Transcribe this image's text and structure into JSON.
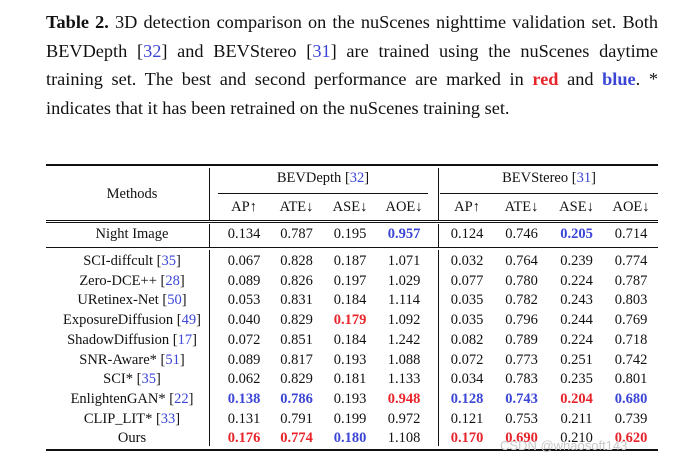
{
  "caption": {
    "label": "Table 2.",
    "text_1": " 3D detection comparison on the nuScenes nighttime validation set.  Both BEVDepth [",
    "ref_a": "32",
    "text_2": "] and BEVStereo [",
    "ref_b": "31",
    "text_3": "] are trained using the nuScenes daytime training set.  The best and second performance are marked in ",
    "red_word": "red",
    "text_4": " and ",
    "blue_word": "blue",
    "text_5": ".  * indicates that it has been retrained on the nuScenes training set."
  },
  "table": {
    "methods_header": "Methods",
    "group_a": {
      "name": "BEVDepth",
      "ref": "32"
    },
    "group_b": {
      "name": "BEVStereo",
      "ref": "31"
    },
    "columns": [
      "AP↑",
      "ATE↓",
      "ASE↓",
      "AOE↓",
      "AP↑",
      "ATE↓",
      "ASE↓",
      "AOE↓"
    ],
    "baseline": {
      "method": "Night Image",
      "values": [
        "0.134",
        "0.787",
        "0.195",
        "0.957",
        "0.124",
        "0.746",
        "0.205",
        "0.714"
      ],
      "styles": [
        "",
        "",
        "",
        "blue",
        "",
        "",
        "blue",
        ""
      ]
    },
    "rows": [
      {
        "method": "SCI-diffcult",
        "ref": "35",
        "values": [
          "0.067",
          "0.828",
          "0.187",
          "1.071",
          "0.032",
          "0.764",
          "0.239",
          "0.774"
        ],
        "styles": [
          "",
          "",
          "",
          "",
          "",
          "",
          "",
          ""
        ]
      },
      {
        "method": "Zero-DCE++",
        "ref": "28",
        "values": [
          "0.089",
          "0.826",
          "0.197",
          "1.029",
          "0.077",
          "0.780",
          "0.224",
          "0.787"
        ],
        "styles": [
          "",
          "",
          "",
          "",
          "",
          "",
          "",
          ""
        ]
      },
      {
        "method": "URetinex-Net",
        "ref": "50",
        "values": [
          "0.053",
          "0.831",
          "0.184",
          "1.114",
          "0.035",
          "0.782",
          "0.243",
          "0.803"
        ],
        "styles": [
          "",
          "",
          "",
          "",
          "",
          "",
          "",
          ""
        ]
      },
      {
        "method": "ExposureDiffusion",
        "ref": "49",
        "values": [
          "0.040",
          "0.829",
          "0.179",
          "1.092",
          "0.035",
          "0.796",
          "0.244",
          "0.769"
        ],
        "styles": [
          "",
          "",
          "red",
          "",
          "",
          "",
          "",
          ""
        ]
      },
      {
        "method": "ShadowDiffusion",
        "ref": "17",
        "values": [
          "0.072",
          "0.851",
          "0.184",
          "1.242",
          "0.082",
          "0.789",
          "0.224",
          "0.718"
        ],
        "styles": [
          "",
          "",
          "",
          "",
          "",
          "",
          "",
          ""
        ]
      },
      {
        "method": "SNR-Aware*",
        "ref": "51",
        "values": [
          "0.089",
          "0.817",
          "0.193",
          "1.088",
          "0.072",
          "0.773",
          "0.251",
          "0.742"
        ],
        "styles": [
          "",
          "",
          "",
          "",
          "",
          "",
          "",
          ""
        ]
      },
      {
        "method": "SCI*",
        "ref": "35",
        "values": [
          "0.062",
          "0.829",
          "0.181",
          "1.133",
          "0.034",
          "0.783",
          "0.235",
          "0.801"
        ],
        "styles": [
          "",
          "",
          "",
          "",
          "",
          "",
          "",
          ""
        ]
      },
      {
        "method": "EnlightenGAN*",
        "ref": "22",
        "values": [
          "0.138",
          "0.786",
          "0.193",
          "0.948",
          "0.128",
          "0.743",
          "0.204",
          "0.680"
        ],
        "styles": [
          "blue",
          "blue",
          "",
          "red",
          "blue",
          "blue",
          "red",
          "blue"
        ]
      },
      {
        "method": "CLIP_LIT*",
        "ref": "33",
        "values": [
          "0.131",
          "0.791",
          "0.199",
          "0.972",
          "0.121",
          "0.753",
          "0.211",
          "0.739"
        ],
        "styles": [
          "",
          "",
          "",
          "",
          "",
          "",
          "",
          ""
        ]
      },
      {
        "method": "Ours",
        "ref": "",
        "values": [
          "0.176",
          "0.774",
          "0.180",
          "1.108",
          "0.170",
          "0.690",
          "0.210",
          "0.620"
        ],
        "styles": [
          "red",
          "red",
          "blue",
          "",
          "red",
          "red",
          "",
          "red"
        ]
      }
    ]
  },
  "watermark": "CSDN @whaosoft143"
}
